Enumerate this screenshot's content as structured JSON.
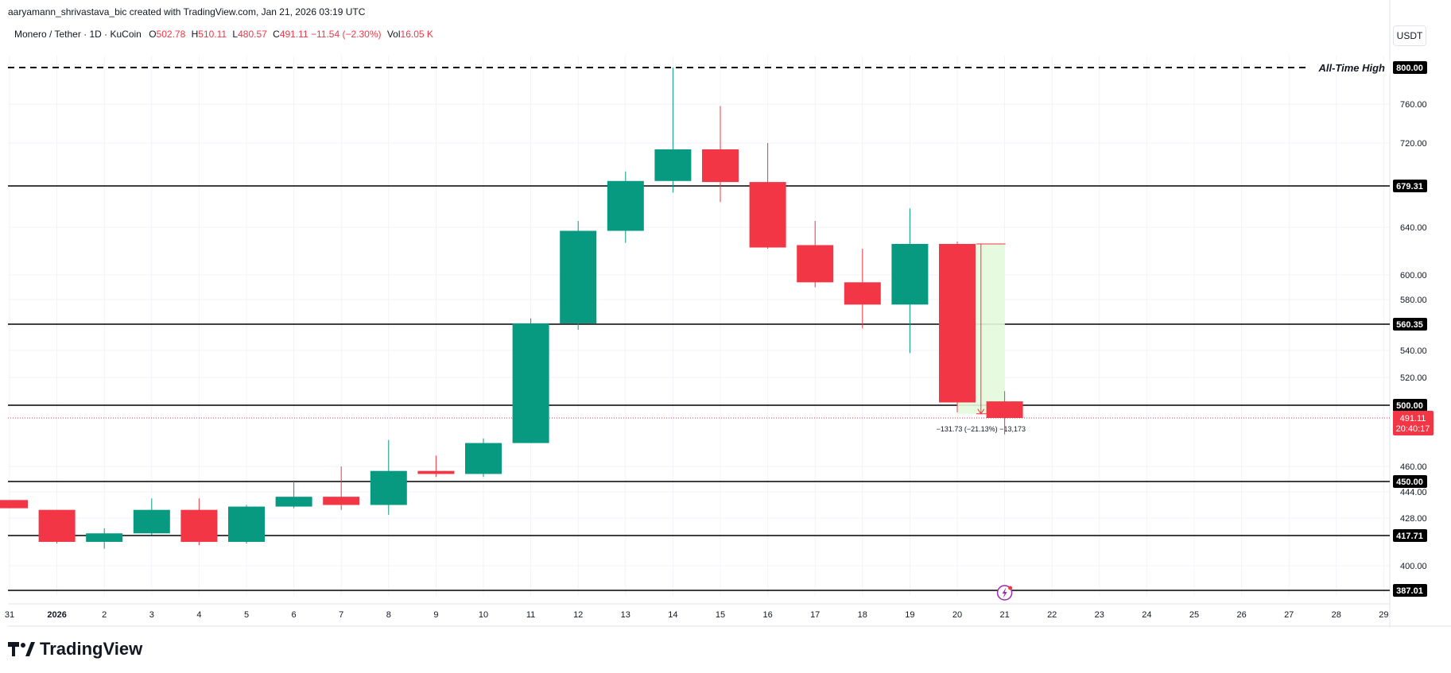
{
  "attribution": "aaryamann_shrivastava_bic created with TradingView.com, Jan 21, 2026 03:19 UTC",
  "legend": {
    "symbol": "Monero / Tether · 1D · KuCoin",
    "open_label": "O",
    "open": "502.78",
    "high_label": "H",
    "high": "510.11",
    "low_label": "L",
    "low": "480.57",
    "close_label": "C",
    "close": "491.11 −11.54 (−2.30%)",
    "vol_label": "Vol",
    "vol": "16.05 K"
  },
  "currency": "USDT",
  "brand": "TradingView",
  "colors": {
    "up": "#089981",
    "down": "#f23645",
    "measure_fill": "#e3f9dc"
  },
  "chart_data": {
    "type": "candlestick",
    "y_ticks": [
      "760.00",
      "720.00",
      "640.00",
      "600.00",
      "580.00",
      "540.00",
      "520.00",
      "460.00",
      "444.00",
      "428.00",
      "400.00"
    ],
    "x_ticks": [
      "31",
      "2026",
      "2",
      "3",
      "4",
      "5",
      "6",
      "7",
      "8",
      "9",
      "10",
      "11",
      "12",
      "13",
      "14",
      "15",
      "16",
      "17",
      "18",
      "19",
      "20",
      "21",
      "22",
      "23",
      "24",
      "25",
      "26",
      "27",
      "28",
      "29"
    ],
    "candles": [
      {
        "x": "31",
        "o": 439,
        "h": 439,
        "l": 434,
        "c": 434
      },
      {
        "x": "2026",
        "o": 433,
        "h": 433,
        "l": 413,
        "c": 414
      },
      {
        "x": "2",
        "o": 414,
        "h": 422,
        "l": 410,
        "c": 419
      },
      {
        "x": "3",
        "o": 419,
        "h": 440,
        "l": 418,
        "c": 433
      },
      {
        "x": "4",
        "o": 433,
        "h": 440,
        "l": 412,
        "c": 414
      },
      {
        "x": "5",
        "o": 414,
        "h": 436,
        "l": 413,
        "c": 435
      },
      {
        "x": "6",
        "o": 435,
        "h": 450,
        "l": 434,
        "c": 441
      },
      {
        "x": "7",
        "o": 441,
        "h": 460,
        "l": 433,
        "c": 436
      },
      {
        "x": "8",
        "o": 436,
        "h": 477,
        "l": 430,
        "c": 457
      },
      {
        "x": "9",
        "o": 457,
        "h": 467,
        "l": 453,
        "c": 455
      },
      {
        "x": "10",
        "o": 455,
        "h": 478,
        "l": 453,
        "c": 475
      },
      {
        "x": "11",
        "o": 475,
        "h": 565,
        "l": 475,
        "c": 561
      },
      {
        "x": "12",
        "o": 561,
        "h": 646,
        "l": 556,
        "c": 637
      },
      {
        "x": "13",
        "o": 637,
        "h": 693,
        "l": 627,
        "c": 684
      },
      {
        "x": "14",
        "o": 684,
        "h": 800,
        "l": 673,
        "c": 714
      },
      {
        "x": "15",
        "o": 714,
        "h": 758,
        "l": 664,
        "c": 683
      },
      {
        "x": "16",
        "o": 683,
        "h": 720,
        "l": 622,
        "c": 623
      },
      {
        "x": "17",
        "o": 625,
        "h": 646,
        "l": 590,
        "c": 594
      },
      {
        "x": "18",
        "o": 594,
        "h": 622,
        "l": 557,
        "c": 576
      },
      {
        "x": "19",
        "o": 576,
        "h": 658,
        "l": 538,
        "c": 626
      },
      {
        "x": "20",
        "o": 626,
        "h": 628,
        "l": 495,
        "c": 502
      },
      {
        "x": "21",
        "o": 502.78,
        "h": 510.11,
        "l": 480.57,
        "c": 491.11
      }
    ],
    "levels": [
      {
        "value": "800.00",
        "style": "dashed",
        "label": "All-Time High"
      },
      {
        "value": "679.31",
        "style": "solid"
      },
      {
        "value": "560.35",
        "style": "solid"
      },
      {
        "value": "500.00",
        "style": "solid"
      },
      {
        "value": "450.00",
        "style": "solid"
      },
      {
        "value": "417.71",
        "style": "solid"
      },
      {
        "value": "387.01",
        "style": "solid"
      }
    ],
    "last_price": "491.11",
    "countdown": "20:40:17",
    "measure": {
      "text": "−131.73 (−21.13%) −13,173",
      "from": 626,
      "to": 494
    }
  }
}
